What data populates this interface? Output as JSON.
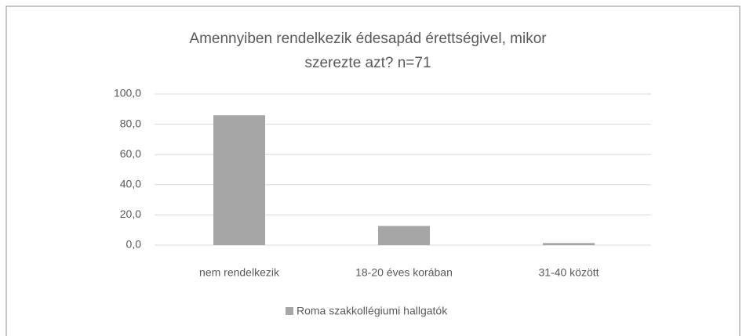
{
  "chart_data": {
    "type": "bar",
    "title": "Amennyiben rendelkezik édesapád érettségivel, mikor\nszerezte azt? n=71",
    "categories": [
      "nem rendelkezik",
      "18-20 éves korában",
      "31-40 között"
    ],
    "series": [
      {
        "name": "Roma szakkollégiumi hallgatók",
        "color": "#a6a6a6",
        "values": [
          85.9,
          12.7,
          1.4
        ]
      }
    ],
    "ylim": [
      0,
      100
    ],
    "yticks": [
      {
        "value": 0,
        "label": "0,0"
      },
      {
        "value": 20,
        "label": "20,0"
      },
      {
        "value": 40,
        "label": "40,0"
      },
      {
        "value": 60,
        "label": "60,0"
      },
      {
        "value": 80,
        "label": "80,0"
      },
      {
        "value": 100,
        "label": "100,0"
      }
    ],
    "grid": true,
    "legend": "bottom"
  }
}
